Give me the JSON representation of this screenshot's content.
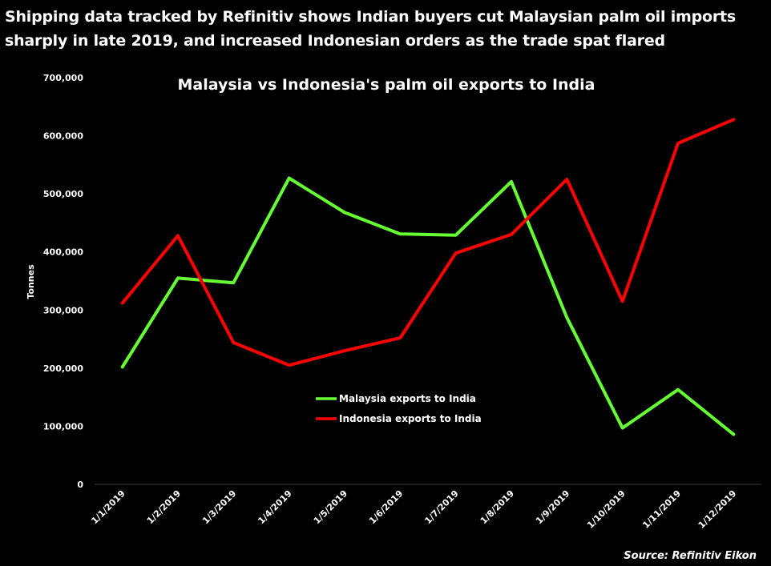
{
  "headline": "Shipping data tracked by Refinitiv shows Indian buyers cut Malaysian palm oil imports sharply in late 2019, and increased Indonesian orders as the trade spat flared",
  "source": "Source: Refinitiv Eikon",
  "chart_data": {
    "type": "line",
    "title": "Malaysia vs Indonesia's palm oil exports to India",
    "xlabel": "",
    "ylabel": "Tonnes",
    "categories": [
      "1/1/2019",
      "1/2/2019",
      "1/3/2019",
      "1/4/2019",
      "1/5/2019",
      "1/6/2019",
      "1/7/2019",
      "1/8/2019",
      "1/9/2019",
      "1/10/2019",
      "1/11/2019",
      "1/12/2019"
    ],
    "ylim": [
      0,
      700000
    ],
    "yticks": [
      0,
      100000,
      200000,
      300000,
      400000,
      500000,
      600000,
      700000
    ],
    "ytick_labels": [
      "0",
      "100,000",
      "200,000",
      "300,000",
      "400,000",
      "500,000",
      "600,000",
      "700,000"
    ],
    "grid": false,
    "legend_position": "center",
    "series": [
      {
        "name": "Malaysia exports to India",
        "color": "#66ff33",
        "values": [
          202000,
          355000,
          347000,
          527000,
          468000,
          431000,
          429000,
          521000,
          287000,
          97000,
          163000,
          86000
        ]
      },
      {
        "name": "Indonesia exports to India",
        "color": "#ff0000",
        "values": [
          312000,
          428000,
          244000,
          205000,
          230000,
          252000,
          398000,
          430000,
          525000,
          315000,
          587000,
          628000
        ]
      }
    ]
  }
}
